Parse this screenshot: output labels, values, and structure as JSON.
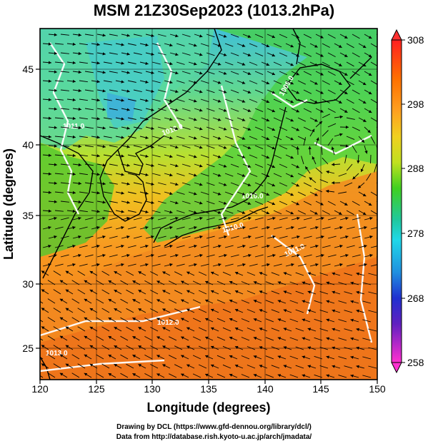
{
  "title": "MSM 21Z30Sep2023 (1013.2hPa)",
  "map": {
    "x_axis": {
      "label": "Longitude (degrees)",
      "ticks": [
        120,
        125,
        130,
        135,
        140,
        145,
        150
      ],
      "range": [
        120,
        150
      ]
    },
    "y_axis": {
      "label": "Latitude  (degrees)",
      "ticks": [
        25,
        30,
        35,
        40,
        45
      ],
      "range": [
        22.5,
        48
      ]
    },
    "contour_labels": [
      "1011.0",
      "1010.0",
      "1009.0",
      "1010.0",
      "1011.0",
      "1012.0",
      "1013.0",
      "1010.0"
    ]
  },
  "colorbar": {
    "ticks": [
      "308",
      "298",
      "288",
      "278",
      "268",
      "258"
    ],
    "range": [
      258,
      308
    ],
    "colors": [
      "#ff3030",
      "#ff6a00",
      "#ff9a20",
      "#f5c020",
      "#e8e020",
      "#b0e020",
      "#40d020",
      "#20c090",
      "#20d0e0",
      "#2080e0",
      "#2020c0",
      "#a020c0",
      "#ff30c0"
    ]
  },
  "credit": {
    "line1": "Drawing by DCL (https://www.gfd-dennou.org/library/dcl/)",
    "line2": "Data from http://database.rish.kyoto-u.ac.jp/arch/jmadata/"
  }
}
